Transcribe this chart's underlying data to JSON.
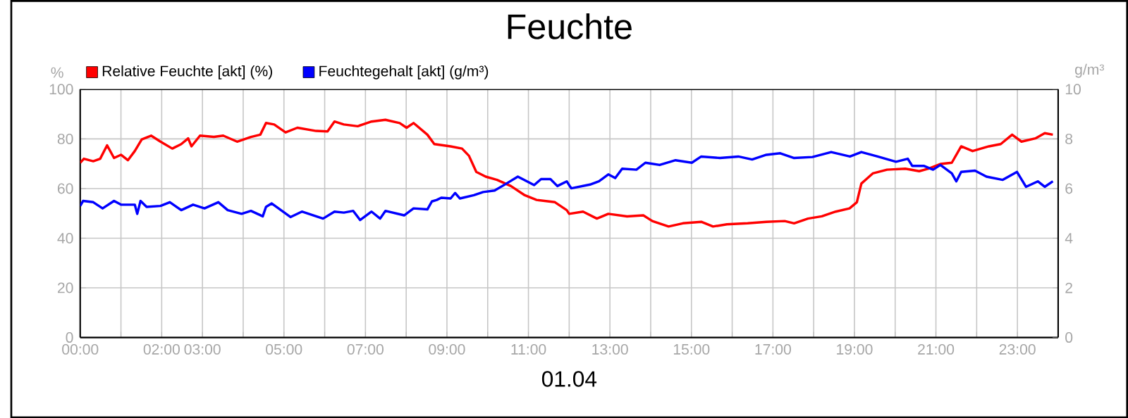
{
  "chart_data": {
    "type": "line",
    "title": "Feuchte",
    "xlabel": "01.04",
    "ylabel": "%",
    "y2label": "g/m³",
    "xlim": [
      0,
      24
    ],
    "xticks": [
      {
        "value": 0,
        "label": "00:00"
      },
      {
        "value": 1,
        "label": null
      },
      {
        "value": 2,
        "label": "02:00"
      },
      {
        "value": 3,
        "label": "03:00"
      },
      {
        "value": 4,
        "label": null
      },
      {
        "value": 5,
        "label": "05:00"
      },
      {
        "value": 6,
        "label": null
      },
      {
        "value": 7,
        "label": "07:00"
      },
      {
        "value": 8,
        "label": null
      },
      {
        "value": 9,
        "label": "09:00"
      },
      {
        "value": 10,
        "label": null
      },
      {
        "value": 11,
        "label": "11:00"
      },
      {
        "value": 12,
        "label": null
      },
      {
        "value": 13,
        "label": "13:00"
      },
      {
        "value": 14,
        "label": null
      },
      {
        "value": 15,
        "label": "15:00"
      },
      {
        "value": 16,
        "label": null
      },
      {
        "value": 17,
        "label": "17:00"
      },
      {
        "value": 18,
        "label": null
      },
      {
        "value": 19,
        "label": "19:00"
      },
      {
        "value": 20,
        "label": null
      },
      {
        "value": 21,
        "label": "21:00"
      },
      {
        "value": 22,
        "label": null
      },
      {
        "value": 23,
        "label": "23:00"
      }
    ],
    "ylim": [
      0,
      100
    ],
    "yticks": [
      0,
      20,
      40,
      60,
      80,
      100
    ],
    "y2lim": [
      0,
      10
    ],
    "y2ticks": [
      0,
      2,
      4,
      6,
      8,
      10
    ],
    "grid": true,
    "legend": "top left",
    "series": [
      {
        "name": "Relative Feuchte [akt] (%)",
        "color": "#ff0000",
        "x": [
          0,
          0.09,
          0.32,
          0.49,
          0.66,
          0.83,
          1.0,
          1.17,
          1.34,
          1.51,
          1.74,
          1.97,
          2.26,
          2.48,
          2.65,
          2.73,
          2.94,
          3.28,
          3.51,
          3.85,
          4.19,
          4.42,
          4.56,
          4.76,
          5.04,
          5.33,
          5.79,
          6.07,
          6.24,
          6.47,
          6.81,
          7.15,
          7.49,
          7.84,
          8.01,
          8.18,
          8.52,
          8.69,
          9.09,
          9.37,
          9.54,
          9.72,
          9.95,
          10.23,
          10.57,
          10.91,
          11.2,
          11.65,
          11.94,
          12.0,
          12.34,
          12.68,
          12.96,
          13.42,
          13.82,
          14.04,
          14.44,
          14.79,
          15.24,
          15.53,
          15.87,
          16.38,
          16.84,
          17.29,
          17.52,
          17.86,
          18.2,
          18.54,
          18.88,
          19.06,
          19.17,
          19.45,
          19.8,
          20.25,
          20.59,
          20.82,
          21.11,
          21.39,
          21.62,
          21.9,
          22.3,
          22.59,
          22.87,
          23.1,
          23.44,
          23.67,
          23.87
        ],
        "values": [
          70.4,
          72,
          71,
          72,
          77.4,
          72.3,
          73.6,
          71.4,
          75.1,
          79.8,
          81.3,
          78.9,
          76.1,
          77.9,
          80.2,
          77,
          81.3,
          80.8,
          81.3,
          78.9,
          80.8,
          81.7,
          86.4,
          85.8,
          82.6,
          84.5,
          83.2,
          83,
          87,
          85.8,
          85.1,
          87,
          87.7,
          86.4,
          84.5,
          86.4,
          81.7,
          77.9,
          77,
          76.1,
          73.2,
          66.7,
          64.8,
          63.5,
          61,
          57.3,
          55.4,
          54.5,
          51.3,
          49.8,
          50.7,
          47.9,
          49.8,
          48.8,
          49.2,
          46.9,
          44.7,
          46,
          46.6,
          44.7,
          45.6,
          46,
          46.6,
          46.9,
          46,
          47.9,
          48.8,
          50.7,
          52,
          54.5,
          62,
          66.1,
          67.6,
          68,
          67,
          68,
          69.9,
          70.4,
          77,
          75.1,
          77,
          77.9,
          81.7,
          78.9,
          80.2,
          82.3,
          81.7
        ]
      },
      {
        "name": "Feuchtegehalt [akt] (g/m³)",
        "color": "#0000ff",
        "axis": "y2",
        "x": [
          0,
          0.07,
          0.32,
          0.55,
          0.83,
          1.0,
          1.34,
          1.4,
          1.48,
          1.63,
          1.97,
          2.2,
          2.48,
          2.77,
          3.05,
          3.39,
          3.62,
          3.96,
          4.19,
          4.48,
          4.56,
          4.7,
          5.16,
          5.44,
          5.96,
          6.24,
          6.47,
          6.7,
          6.87,
          7.15,
          7.36,
          7.49,
          7.95,
          8.18,
          8.52,
          8.63,
          8.75,
          8.86,
          9.09,
          9.2,
          9.32,
          9.66,
          9.89,
          10.17,
          10.46,
          10.74,
          11.14,
          11.31,
          11.54,
          11.71,
          11.94,
          12.05,
          12.51,
          12.73,
          12.96,
          13.13,
          13.3,
          13.65,
          13.87,
          14.22,
          14.61,
          15.01,
          15.24,
          15.7,
          16.15,
          16.49,
          16.84,
          17.18,
          17.52,
          17.97,
          18.43,
          18.89,
          19.17,
          19.57,
          20.02,
          20.31,
          20.42,
          20.71,
          20.93,
          21.11,
          21.39,
          21.5,
          21.62,
          21.96,
          22.24,
          22.64,
          22.99,
          23.21,
          23.5,
          23.67,
          23.87
        ],
        "values": [
          5.3,
          5.5,
          5.45,
          5.2,
          5.5,
          5.35,
          5.35,
          4.98,
          5.5,
          5.26,
          5.3,
          5.45,
          5.13,
          5.35,
          5.2,
          5.45,
          5.13,
          4.98,
          5.1,
          4.88,
          5.26,
          5.4,
          4.85,
          5.07,
          4.79,
          5.07,
          5.03,
          5.1,
          4.73,
          5.07,
          4.79,
          5.1,
          4.92,
          5.2,
          5.16,
          5.48,
          5.54,
          5.63,
          5.6,
          5.82,
          5.6,
          5.73,
          5.86,
          5.92,
          6.2,
          6.48,
          6.14,
          6.38,
          6.38,
          6.1,
          6.29,
          6.01,
          6.16,
          6.29,
          6.57,
          6.42,
          6.8,
          6.76,
          7.04,
          6.95,
          7.14,
          7.04,
          7.29,
          7.23,
          7.29,
          7.17,
          7.36,
          7.42,
          7.23,
          7.27,
          7.47,
          7.29,
          7.47,
          7.29,
          7.08,
          7.2,
          6.91,
          6.91,
          6.76,
          6.95,
          6.61,
          6.29,
          6.67,
          6.72,
          6.48,
          6.35,
          6.67,
          6.07,
          6.29,
          6.07,
          6.29
        ]
      }
    ]
  }
}
